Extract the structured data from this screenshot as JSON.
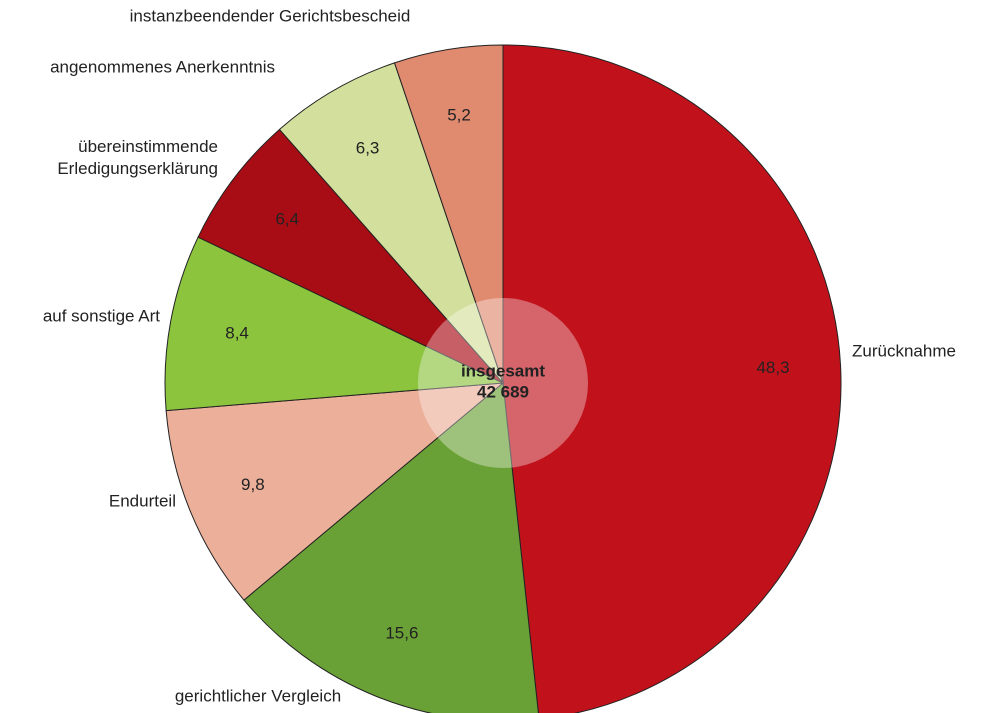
{
  "chart_data": {
    "type": "pie",
    "categories": [
      "Zurücknahme",
      "gerichtlicher Vergleich",
      "Endurteil",
      "auf sonstige Art",
      "übereinstimmende Erledigungserklärung",
      "angenommenes Anerkenntnis",
      "instanzbeendender Gerichtsbescheid"
    ],
    "values": [
      48.3,
      15.6,
      9.8,
      8.4,
      6.4,
      6.3,
      5.2
    ],
    "value_labels": [
      "48,3",
      "15,6",
      "9,8",
      "8,4",
      "6,4",
      "6,3",
      "5,2"
    ],
    "colors": [
      "#c1121c",
      "#6aa136",
      "#ecb09a",
      "#8cc43e",
      "#a80c14",
      "#d3df9c",
      "#e08a70"
    ],
    "center_label": "insgesamt",
    "total": {
      "value": 42689,
      "label": "42 689"
    }
  }
}
